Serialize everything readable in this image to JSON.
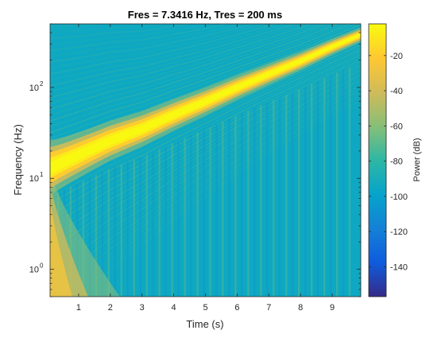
{
  "figure": {
    "title": "Fres = 7.3416 Hz, Tres = 200 ms"
  },
  "chart_data": {
    "type": "heatmap",
    "title": "Fres = 7.3416 Hz, Tres = 200 ms",
    "xlabel": "Time (s)",
    "ylabel": "Frequency (Hz)",
    "xlim": [
      0.1,
      9.9
    ],
    "ylim": [
      0.5,
      500
    ],
    "yscale": "log",
    "x_ticks": [
      1,
      2,
      3,
      4,
      5,
      6,
      7,
      8,
      9
    ],
    "x_tick_labels": [
      "1",
      "2",
      "3",
      "4",
      "5",
      "6",
      "7",
      "8",
      "9"
    ],
    "y_ticks": [
      1,
      10,
      100
    ],
    "y_tick_labels": [
      {
        "base": "10",
        "exp": "0"
      },
      {
        "base": "10",
        "exp": "1"
      },
      {
        "base": "10",
        "exp": "2"
      }
    ],
    "signal": {
      "description_type": "exponential chirp",
      "t": [
        0.1,
        1,
        2,
        3,
        4,
        5,
        6,
        7,
        8,
        9,
        9.9
      ],
      "f_hz": [
        13,
        18,
        26,
        35,
        50,
        70,
        100,
        140,
        195,
        280,
        380
      ]
    },
    "colorbar": {
      "label": "Power (dB)",
      "range": [
        -157,
        -2
      ],
      "ticks": [
        -20,
        -40,
        -60,
        -80,
        -100,
        -120,
        -140
      ],
      "tick_labels": [
        "-20",
        "-40",
        "-60",
        "-80",
        "-100",
        "-120",
        "-140"
      ],
      "colormap": "parula",
      "colors": [
        "#352a87",
        "#0f5cdd",
        "#1481d6",
        "#06a4ca",
        "#2eb7a4",
        "#87bf77",
        "#d1bb59",
        "#fec832",
        "#f9fb0e"
      ]
    },
    "background_db": -95,
    "grid": false
  }
}
